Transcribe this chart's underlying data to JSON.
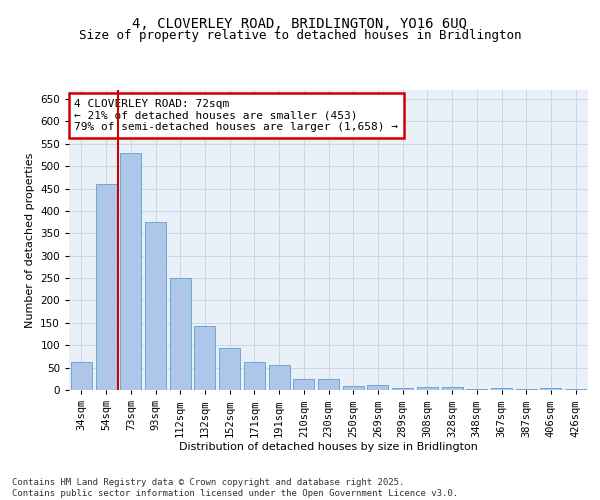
{
  "title_line1": "4, CLOVERLEY ROAD, BRIDLINGTON, YO16 6UQ",
  "title_line2": "Size of property relative to detached houses in Bridlington",
  "xlabel": "Distribution of detached houses by size in Bridlington",
  "ylabel": "Number of detached properties",
  "categories": [
    "34sqm",
    "54sqm",
    "73sqm",
    "93sqm",
    "112sqm",
    "132sqm",
    "152sqm",
    "171sqm",
    "191sqm",
    "210sqm",
    "230sqm",
    "250sqm",
    "269sqm",
    "289sqm",
    "308sqm",
    "328sqm",
    "348sqm",
    "367sqm",
    "387sqm",
    "406sqm",
    "426sqm"
  ],
  "values": [
    62,
    460,
    530,
    375,
    250,
    142,
    93,
    63,
    55,
    25,
    24,
    10,
    11,
    5,
    7,
    7,
    3,
    5,
    3,
    5,
    3
  ],
  "bar_color": "#aec6e8",
  "bar_edge_color": "#5a9fd4",
  "vline_color": "#cc0000",
  "vline_x_index": 2,
  "annotation_line1": "4 CLOVERLEY ROAD: 72sqm",
  "annotation_line2": "← 21% of detached houses are smaller (453)",
  "annotation_line3": "79% of semi-detached houses are larger (1,658) →",
  "annotation_box_color": "#ffffff",
  "annotation_box_edge": "#cc0000",
  "ylim": [
    0,
    670
  ],
  "yticks": [
    0,
    50,
    100,
    150,
    200,
    250,
    300,
    350,
    400,
    450,
    500,
    550,
    600,
    650
  ],
  "grid_color": "#c8d8e8",
  "background_color": "#eaf0f8",
  "footer_line1": "Contains HM Land Registry data © Crown copyright and database right 2025.",
  "footer_line2": "Contains public sector information licensed under the Open Government Licence v3.0.",
  "title_fontsize": 10,
  "subtitle_fontsize": 9,
  "axis_label_fontsize": 8,
  "tick_fontsize": 7.5,
  "annotation_fontsize": 8,
  "footer_fontsize": 6.5
}
